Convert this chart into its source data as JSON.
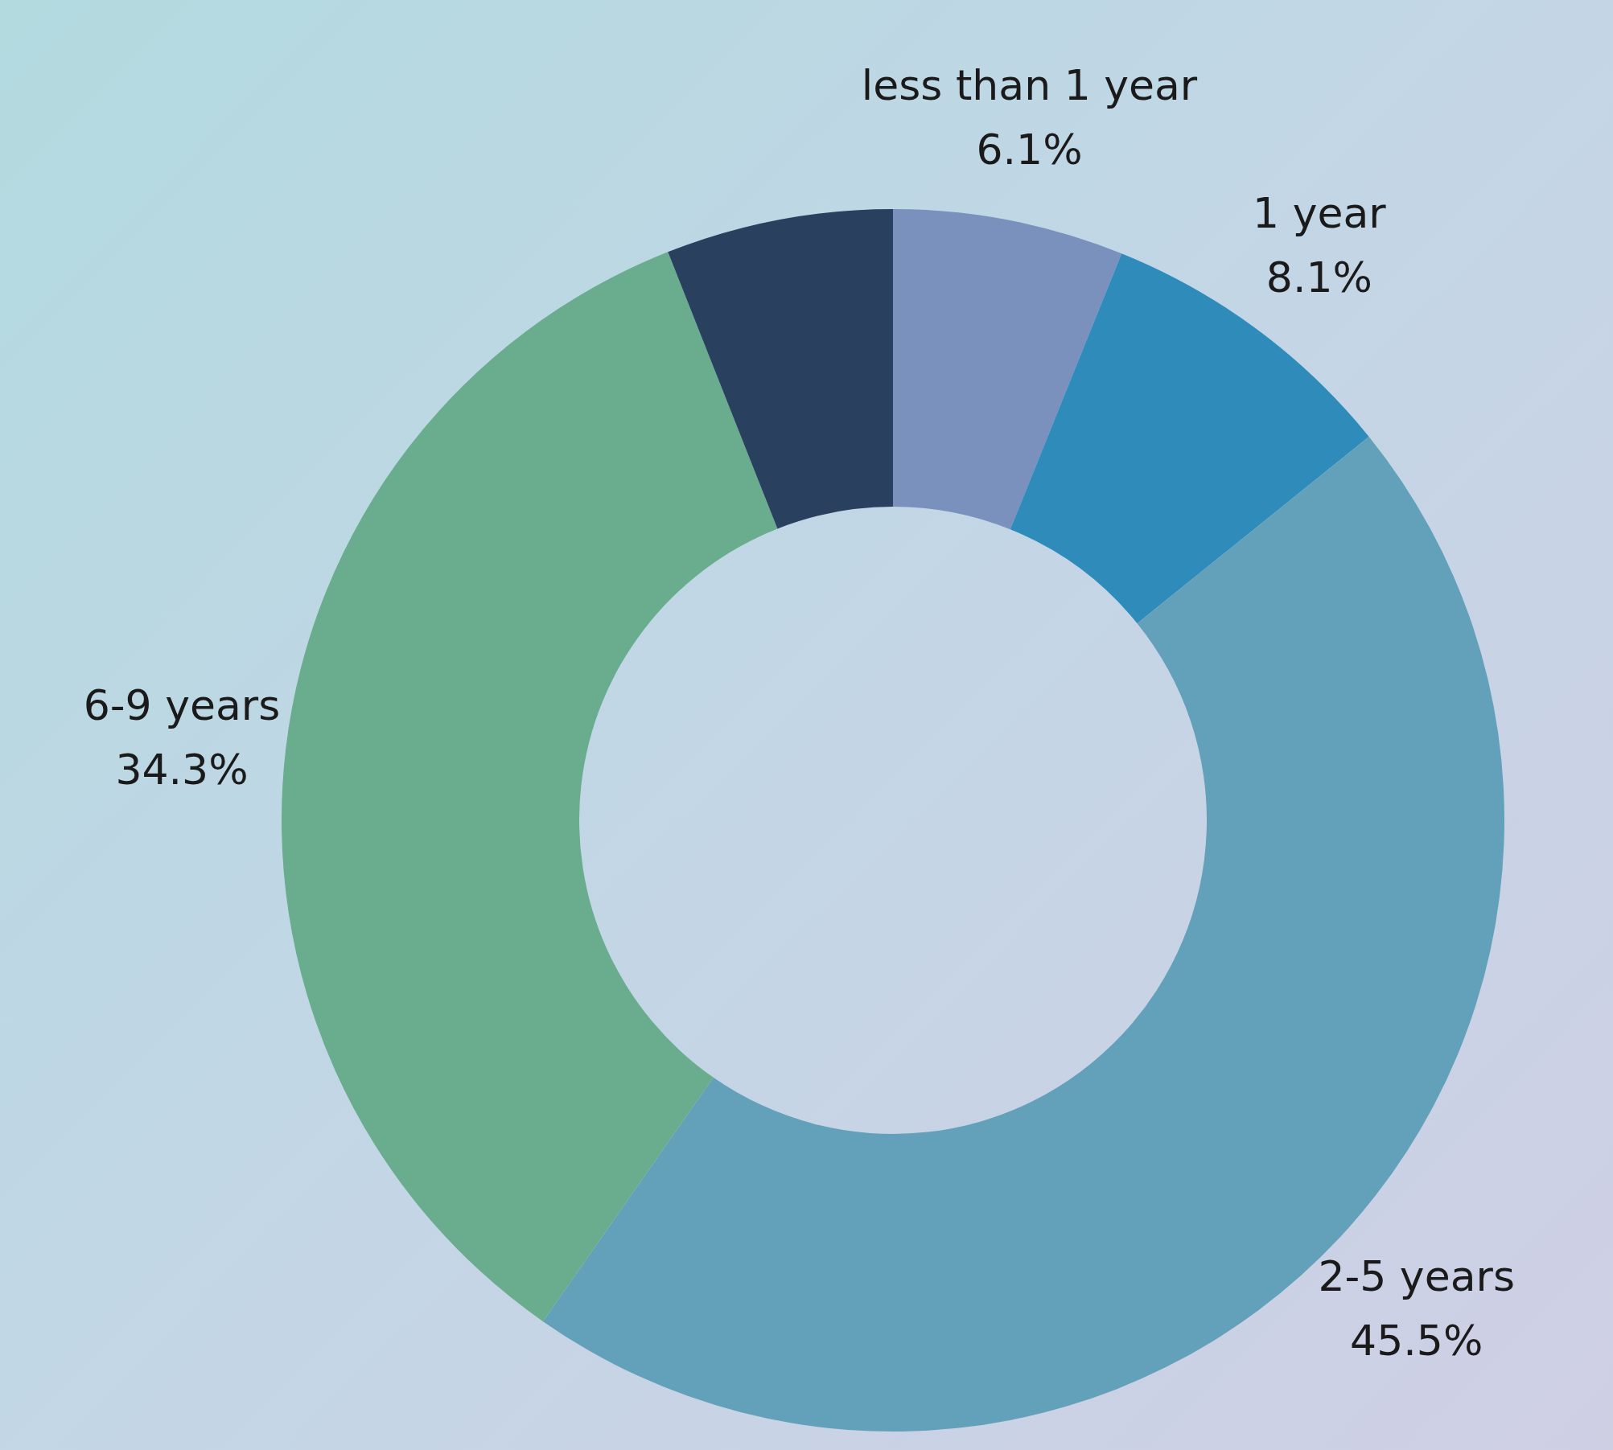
{
  "chart_data": {
    "type": "donut",
    "categories": [
      "less than 1 year",
      "1 year",
      "2-5 years",
      "6-9 years",
      null
    ],
    "values": [
      6.1,
      8.1,
      45.5,
      34.3,
      6.0
    ],
    "colors": [
      "#7a90bd",
      "#2e8bba",
      "#63a1bb",
      "#6aad8e",
      "#29405f"
    ],
    "value_labels": [
      "6.1%",
      "8.1%",
      "45.5%",
      "34.3%",
      null
    ],
    "legend": false
  }
}
